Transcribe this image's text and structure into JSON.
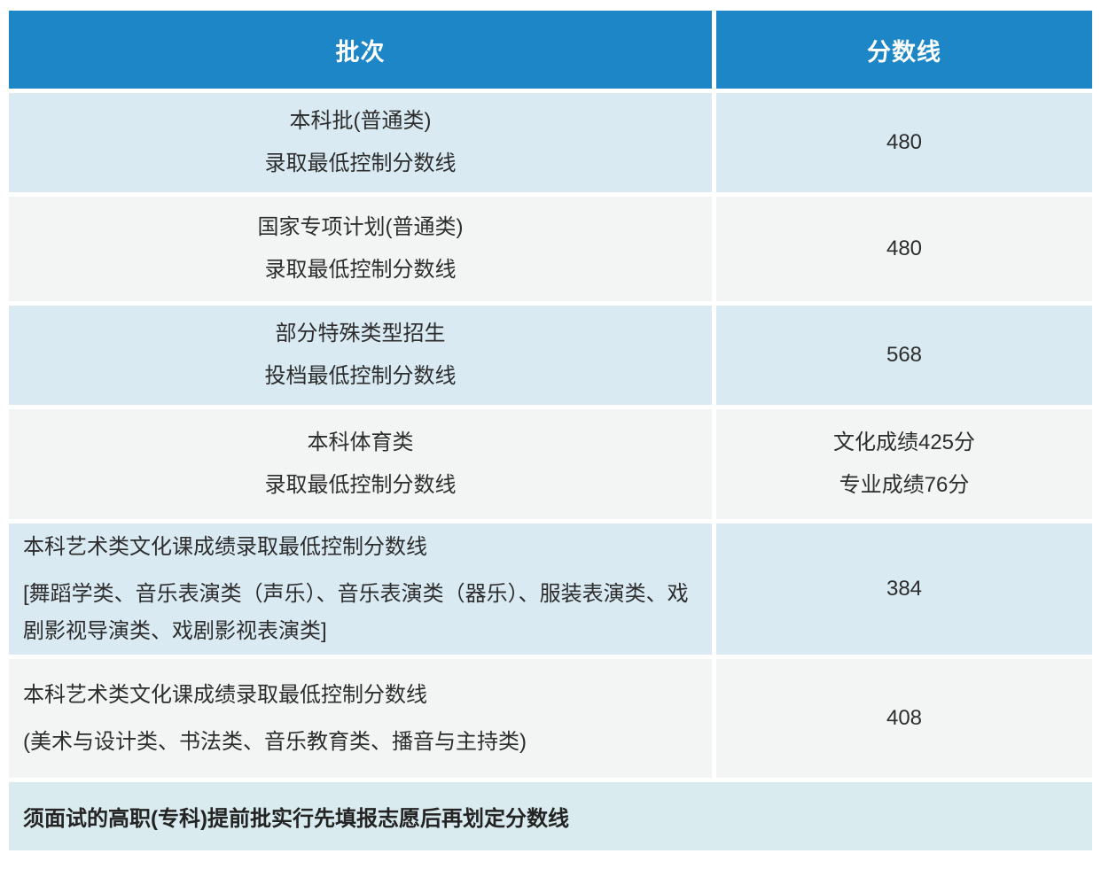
{
  "chart_data": {
    "type": "table",
    "title": "",
    "columns": [
      "批次",
      "分数线"
    ],
    "rows": [
      [
        "本科批(普通类) 录取最低控制分数线",
        "480"
      ],
      [
        "国家专项计划(普通类) 录取最低控制分数线",
        "480"
      ],
      [
        "部分特殊类型招生 投档最低控制分数线",
        "568"
      ],
      [
        "本科体育类 录取最低控制分数线",
        "文化成绩425分 专业成绩76分"
      ],
      [
        "本科艺术类文化课成绩录取最低控制分数线 [舞蹈学类、音乐表演类（声乐）、音乐表演类（器乐）、服装表演类、戏剧影视导演类、戏剧影视表演类]",
        "384"
      ],
      [
        "本科艺术类文化课成绩录取最低控制分数线 (美术与设计类、书法类、音乐教育类、播音与主持类)",
        "408"
      ]
    ],
    "footer_note": "须面试的高职(专科)提前批实行先填报志愿后再划定分数线"
  },
  "table": {
    "header": {
      "batch": "批次",
      "score": "分数线"
    },
    "rows": [
      {
        "batch_lines": [
          "本科批(普通类)",
          "录取最低控制分数线"
        ],
        "score_lines": [
          "480"
        ]
      },
      {
        "batch_lines": [
          "国家专项计划(普通类)",
          "录取最低控制分数线"
        ],
        "score_lines": [
          "480"
        ]
      },
      {
        "batch_lines": [
          "部分特殊类型招生",
          "投档最低控制分数线"
        ],
        "score_lines": [
          "568"
        ]
      },
      {
        "batch_lines": [
          "本科体育类",
          "录取最低控制分数线"
        ],
        "score_lines": [
          "文化成绩425分",
          "专业成绩76分"
        ]
      },
      {
        "batch_lines": [
          "本科艺术类文化课成绩录取最低控制分数线",
          "[舞蹈学类、音乐表演类（声乐）、音乐表演类（器乐）、服装表演类、戏剧影视导演类、戏剧影视表演类]"
        ],
        "score_lines": [
          "384"
        ]
      },
      {
        "batch_lines": [
          "本科艺术类文化课成绩录取最低控制分数线",
          "(美术与设计类、书法类、音乐教育类、播音与主持类)"
        ],
        "score_lines": [
          "408"
        ]
      }
    ],
    "footer": "须面试的高职(专科)提前批实行先填报志愿后再划定分数线"
  },
  "colors": {
    "header_bg": "#1d86c6",
    "header_text": "#ffffff",
    "row_blue_bg": "#d9eaf2",
    "row_white_bg": "#f2f5f4",
    "footer_bg": "#daebf0",
    "body_text": "#2d2d2d",
    "page_bg": "#ffffff"
  }
}
